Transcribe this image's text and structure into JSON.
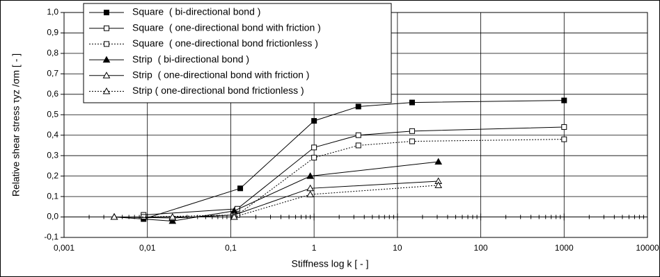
{
  "chart_data": {
    "type": "line",
    "xlabel": "Stiffness   log  k  [ - ]",
    "ylabel": "Relative  shear  stress τyz /σm [ - ]",
    "xscale": "log",
    "grid": true,
    "legend": "top-left",
    "xlim": [
      0.001,
      10000
    ],
    "xticks": [
      {
        "value": 0.001,
        "label": "0,001"
      },
      {
        "value": 0.01,
        "label": "0,01"
      },
      {
        "value": 0.1,
        "label": "0,1"
      },
      1,
      10,
      100,
      1000,
      10000
    ],
    "ylim": [
      -0.1,
      1.0
    ],
    "yticks": [
      {
        "value": -0.1,
        "label": "-0,1"
      },
      {
        "value": 0,
        "label": "0,0"
      },
      {
        "value": 0.1,
        "label": "0,1"
      },
      {
        "value": 0.2,
        "label": "0,2"
      },
      {
        "value": 0.3,
        "label": "0,3"
      },
      {
        "value": 0.4,
        "label": "0,4"
      },
      {
        "value": 0.5,
        "label": "0,5"
      },
      {
        "value": 0.6,
        "label": "0,6"
      },
      {
        "value": 0.7,
        "label": "0,7"
      },
      {
        "value": 0.8,
        "label": "0,8"
      },
      {
        "value": 0.9,
        "label": "0,9"
      },
      {
        "value": 1.0,
        "label": "1,0"
      }
    ],
    "series": [
      {
        "name": "Square  ( bi-directional bond )",
        "color": "#000000",
        "marker": "square",
        "filled": true,
        "linestyle": "solid",
        "x": [
          0.009,
          0.13,
          1,
          3.4,
          15,
          1000
        ],
        "values": [
          -0.01,
          0.14,
          0.47,
          0.54,
          0.56,
          0.57
        ]
      },
      {
        "name": "Square  ( one-directional bond with friction )",
        "color": "#000000",
        "marker": "square",
        "filled": false,
        "linestyle": "solid",
        "x": [
          0.009,
          0.12,
          1,
          3.4,
          15,
          1000
        ],
        "values": [
          0.01,
          0.04,
          0.34,
          0.4,
          0.42,
          0.44
        ]
      },
      {
        "name": "Square  ( one-directional bond frictionless )",
        "color": "#000000",
        "marker": "square",
        "filled": false,
        "linestyle": "dotted",
        "x": [
          0.009,
          0.12,
          1,
          3.4,
          15,
          1000
        ],
        "values": [
          0.0,
          0.01,
          0.29,
          0.35,
          0.37,
          0.38
        ]
      },
      {
        "name": "Strip  ( bi-directional bond )",
        "color": "#000000",
        "marker": "triangle",
        "filled": true,
        "linestyle": "solid",
        "x": [
          0.004,
          0.02,
          0.11,
          0.9,
          31
        ],
        "values": [
          0.0,
          -0.02,
          0.03,
          0.2,
          0.27
        ]
      },
      {
        "name": "Strip  ( one-directional bond with friction )",
        "color": "#000000",
        "marker": "triangle",
        "filled": false,
        "linestyle": "solid",
        "x": [
          0.004,
          0.02,
          0.11,
          0.9,
          31
        ],
        "values": [
          0.0,
          -0.005,
          0.01,
          0.14,
          0.175
        ]
      },
      {
        "name": "Strip ( one-directional bond frictionless )",
        "color": "#000000",
        "marker": "triangle",
        "filled": false,
        "linestyle": "dotted",
        "x": [
          0.004,
          0.02,
          0.11,
          0.9,
          31
        ],
        "values": [
          0.0,
          0.0,
          0.0,
          0.11,
          0.155
        ]
      }
    ]
  }
}
